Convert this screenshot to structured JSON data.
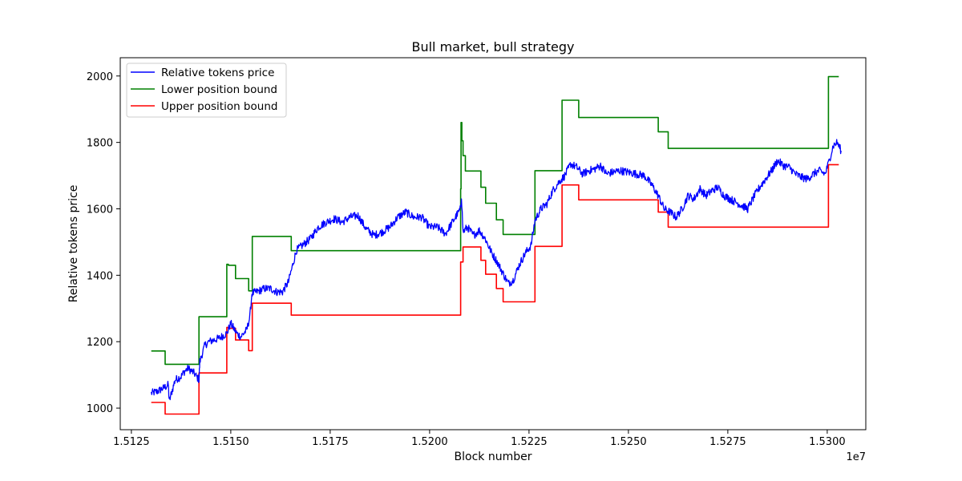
{
  "chart_data": {
    "type": "line",
    "title": "Bull market, bull strategy",
    "xlabel": "Block number",
    "ylabel": "Relative tokens price",
    "x_offset_text": "1e7",
    "xlim": [
      15122200,
      15309700
    ],
    "ylim": [
      935,
      2055
    ],
    "x_tick_values": [
      15125000,
      15150000,
      15175000,
      15200000,
      15225000,
      15250000,
      15275000,
      15300000
    ],
    "x_tick_labels": [
      "1.5125",
      "1.5150",
      "1.5175",
      "1.5200",
      "1.5225",
      "1.5250",
      "1.5275",
      "1.5300"
    ],
    "y_ticks": [
      1000,
      1200,
      1400,
      1600,
      1800,
      2000
    ],
    "grid": false,
    "legend_position": "top-left",
    "series": [
      {
        "name": "Relative tokens price",
        "color": "#0000ff",
        "style": "noisy",
        "x": [
          15130000,
          15131500,
          15133000,
          15134300,
          15134500,
          15136000,
          15137500,
          15138300,
          15139300,
          15140800,
          15142000,
          15142200,
          15143500,
          15144500,
          15147000,
          15149000,
          15150000,
          15151500,
          15152500,
          15154000,
          15154800,
          15155300,
          15156500,
          15158500,
          15160000,
          15161500,
          15163000,
          15164500,
          15166500,
          15168500,
          15170000,
          15172000,
          15174000,
          15176000,
          15178000,
          15180000,
          15182000,
          15184000,
          15186000,
          15188000,
          15190000,
          15192000,
          15194000,
          15196000,
          15198000,
          15200000,
          15202000,
          15204000,
          15206000,
          15207800,
          15208000,
          15208400,
          15209500,
          15211000,
          15212500,
          15214000,
          15215500,
          15217000,
          15218500,
          15219800,
          15221000,
          15222500,
          15224000,
          15225500,
          15226500,
          15228000,
          15229500,
          15231000,
          15232500,
          15234000,
          15235500,
          15237000,
          15238500,
          15240000,
          15241500,
          15243000,
          15244500,
          15246000,
          15248000,
          15250000,
          15252000,
          15254000,
          15256000,
          15257500,
          15259000,
          15260500,
          15262000,
          15263500,
          15265000,
          15266500,
          15268000,
          15269500,
          15271000,
          15272500,
          15274000,
          15275500,
          15277000,
          15278500,
          15280000,
          15281500,
          15283000,
          15284500,
          15286000,
          15287500,
          15289000,
          15290500,
          15292000,
          15293500,
          15295000,
          15296500,
          15298000,
          15299500,
          15300500,
          15301500,
          15302500,
          15303500
        ],
        "y": [
          1045,
          1050,
          1060,
          1070,
          1020,
          1085,
          1095,
          1110,
          1120,
          1105,
          1085,
          1140,
          1190,
          1200,
          1210,
          1225,
          1255,
          1225,
          1215,
          1235,
          1275,
          1345,
          1350,
          1360,
          1360,
          1350,
          1350,
          1380,
          1475,
          1495,
          1510,
          1545,
          1560,
          1570,
          1560,
          1575,
          1580,
          1540,
          1520,
          1530,
          1545,
          1575,
          1590,
          1575,
          1575,
          1545,
          1545,
          1525,
          1565,
          1600,
          1640,
          1530,
          1545,
          1520,
          1535,
          1510,
          1470,
          1440,
          1405,
          1375,
          1385,
          1430,
          1465,
          1490,
          1565,
          1600,
          1615,
          1655,
          1680,
          1700,
          1735,
          1725,
          1705,
          1715,
          1720,
          1730,
          1705,
          1710,
          1715,
          1710,
          1705,
          1700,
          1670,
          1640,
          1600,
          1590,
          1575,
          1600,
          1640,
          1630,
          1660,
          1640,
          1655,
          1665,
          1640,
          1630,
          1620,
          1610,
          1600,
          1635,
          1665,
          1690,
          1715,
          1745,
          1730,
          1725,
          1705,
          1695,
          1690,
          1705,
          1715,
          1705,
          1745,
          1790,
          1800,
          1775
        ]
      },
      {
        "name": "Lower position bound",
        "color": "#008000",
        "style": "step",
        "x": [
          15130000,
          15133500,
          15133500,
          15142000,
          15142000,
          15149000,
          15149000,
          15149400,
          15149400,
          15151200,
          15151200,
          15154500,
          15154500,
          15155400,
          15155400,
          15165200,
          15165200,
          15207800,
          15207800,
          15207900,
          15207900,
          15208100,
          15208100,
          15208400,
          15208400,
          15209000,
          15209000,
          15212900,
          15212900,
          15214100,
          15214100,
          15216800,
          15216800,
          15218500,
          15218500,
          15226500,
          15226500,
          15233300,
          15233300,
          15237500,
          15237500,
          15257500,
          15257500,
          15260000,
          15260000,
          15300300,
          15300300,
          15302900
        ],
        "y": [
          1172,
          1172,
          1132,
          1132,
          1275,
          1275,
          1433,
          1433,
          1430,
          1430,
          1390,
          1390,
          1353,
          1353,
          1517,
          1517,
          1474,
          1474,
          1660,
          1660,
          1860,
          1860,
          1805,
          1805,
          1760,
          1760,
          1714,
          1714,
          1665,
          1665,
          1617,
          1617,
          1567,
          1567,
          1523,
          1523,
          1715,
          1715,
          1927,
          1927,
          1875,
          1875,
          1832,
          1832,
          1782,
          1782,
          1998,
          1998
        ]
      },
      {
        "name": "Upper position bound",
        "color": "#ff0000",
        "style": "step",
        "x": [
          15130000,
          15133500,
          15133500,
          15142000,
          15142000,
          15149000,
          15149000,
          15149400,
          15149400,
          15151200,
          15151200,
          15154500,
          15154500,
          15155400,
          15155400,
          15165200,
          15165200,
          15207800,
          15207800,
          15208400,
          15208400,
          15212900,
          15212900,
          15214100,
          15214100,
          15216800,
          15216800,
          15218500,
          15218500,
          15226500,
          15226500,
          15233300,
          15233300,
          15237500,
          15237500,
          15257500,
          15257500,
          15260000,
          15260000,
          15300300,
          15300300,
          15302900
        ],
        "y": [
          1017,
          1017,
          982,
          982,
          1106,
          1106,
          1243,
          1243,
          1240,
          1240,
          1205,
          1205,
          1173,
          1173,
          1316,
          1316,
          1280,
          1280,
          1440,
          1440,
          1485,
          1485,
          1445,
          1445,
          1403,
          1403,
          1360,
          1360,
          1320,
          1320,
          1487,
          1487,
          1672,
          1672,
          1627,
          1627,
          1590,
          1590,
          1545,
          1545,
          1733,
          1733
        ]
      }
    ]
  }
}
